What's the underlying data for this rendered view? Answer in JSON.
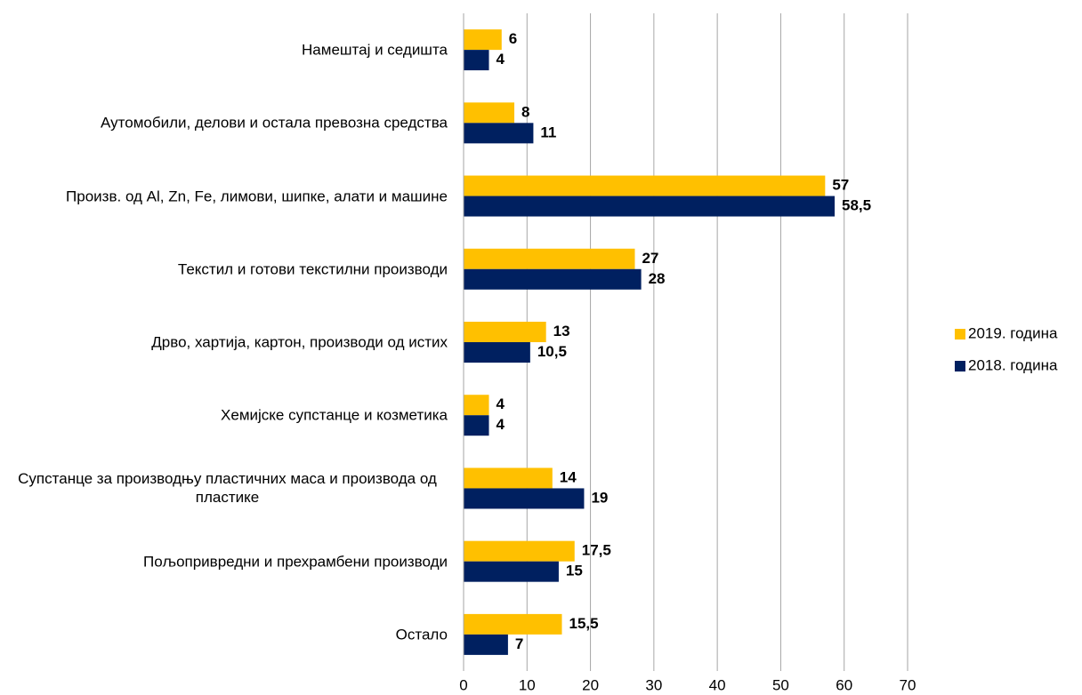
{
  "chart_data": {
    "type": "bar",
    "orientation": "horizontal",
    "categories": [
      "Намештај и седишта",
      "Аутомобили, делови и остала превозна средства",
      "Произв. од Al, Zn, Fe, лимови, шипке, алати и машине",
      "Текстил и готови текстилни производи",
      "Дрво, хартија, картон, производи од истих",
      "Хемијске супстанце и козметика",
      "Супстанце за производњу пластичних маса и производа од пластике",
      "Пољопривредни и прехрамбени производи",
      "Остало"
    ],
    "series": [
      {
        "name": "2019. година",
        "color": "#ffc000",
        "values": [
          6,
          8,
          57,
          27,
          13,
          4,
          14,
          17.5,
          15.5
        ],
        "value_labels": [
          "6",
          "8",
          "57",
          "27",
          "13",
          "4",
          "14",
          "17,5",
          "15,5"
        ]
      },
      {
        "name": "2018. година",
        "color": "#002060",
        "values": [
          4,
          11,
          58.5,
          28,
          10.5,
          4,
          19,
          15,
          7
        ],
        "value_labels": [
          "4",
          "11",
          "58,5",
          "28",
          "10,5",
          "4",
          "19",
          "15",
          "7"
        ]
      }
    ],
    "xlim": [
      0,
      70
    ],
    "xticks": [
      0,
      10,
      20,
      30,
      40,
      50,
      60,
      70
    ],
    "grid": true,
    "legend": "right"
  }
}
